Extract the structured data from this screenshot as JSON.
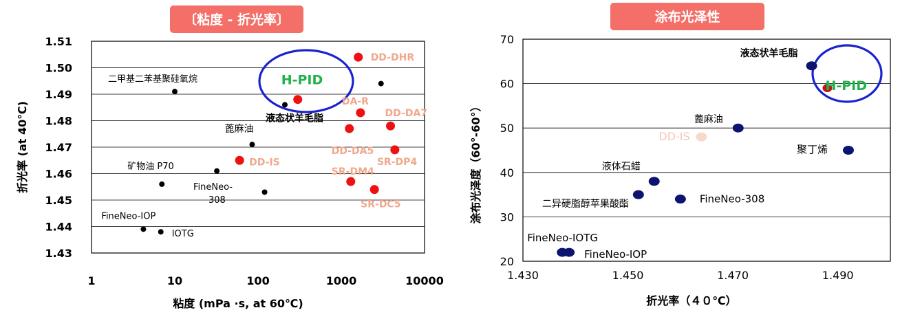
{
  "chart_data": [
    {
      "type": "scatter",
      "title": "〔粘度 - 折光率〕",
      "xlabel": "粘度 (mPa ·s, at 60℃)",
      "ylabel": "折光率 (at 40℃)",
      "xscale": "log",
      "xlim": [
        1,
        10000
      ],
      "ylim": [
        1.43,
        1.51
      ],
      "xticks": [
        1,
        10,
        100,
        1000,
        10000
      ],
      "xtick_labels": [
        "1",
        "10",
        "100",
        "1000",
        "10000"
      ],
      "yticks": [
        1.43,
        1.44,
        1.45,
        1.46,
        1.47,
        1.48,
        1.49,
        1.5,
        1.51
      ],
      "ytick_labels": [
        "1.43",
        "1.44",
        "1.45",
        "1.46",
        "1.47",
        "1.48",
        "1.49",
        "1.50",
        "1.51"
      ],
      "grid": "horizontal",
      "highlight": {
        "label": "H-PID",
        "color": "#21b24b",
        "ring_color": "#1a22d0"
      },
      "points": [
        {
          "label": "二甲基二苯基聚硅氧烷",
          "x": 10,
          "y": 1.491,
          "color": "#000000",
          "label_color": "#000000"
        },
        {
          "label": "",
          "x": 3000,
          "y": 1.494,
          "color": "#000000",
          "label_color": "#000000"
        },
        {
          "label": "液态状羊毛脂",
          "x": 210,
          "y": 1.486,
          "color": "#000000",
          "label_color": "#000000"
        },
        {
          "label": "蓖麻油",
          "x": 85,
          "y": 1.471,
          "color": "#000000",
          "label_color": "#000000"
        },
        {
          "label": "矿物油 P70",
          "x": 7,
          "y": 1.456,
          "color": "#000000",
          "label_color": "#000000"
        },
        {
          "label": "",
          "x": 32,
          "y": 1.461,
          "color": "#000000",
          "label_color": "#000000"
        },
        {
          "label": "FineNeo-308",
          "x": 120,
          "y": 1.453,
          "color": "#000000",
          "label_color": "#000000"
        },
        {
          "label": "FineNeo-IOP",
          "x": 4.2,
          "y": 1.439,
          "color": "#000000",
          "label_color": "#000000"
        },
        {
          "label": "IOTG",
          "x": 6.8,
          "y": 1.438,
          "color": "#000000",
          "label_color": "#000000"
        },
        {
          "label": "DD-DHR",
          "x": 1600,
          "y": 1.504,
          "color": "#ee1111",
          "label_color": "#f0a88c"
        },
        {
          "label": "H-PID",
          "x": 300,
          "y": 1.488,
          "color": "#ee1111",
          "label_color": "#21b24b"
        },
        {
          "label": "DA-R",
          "x": 1700,
          "y": 1.483,
          "color": "#ee1111",
          "label_color": "#f0a88c"
        },
        {
          "label": "DD-DA7",
          "x": 3900,
          "y": 1.478,
          "color": "#ee1111",
          "label_color": "#f0a88c"
        },
        {
          "label": "DD-DA5",
          "x": 1250,
          "y": 1.477,
          "color": "#ee1111",
          "label_color": "#f0a88c"
        },
        {
          "label": "SR-DP4",
          "x": 4400,
          "y": 1.469,
          "color": "#ee1111",
          "label_color": "#f0a88c"
        },
        {
          "label": "DD-IS",
          "x": 60,
          "y": 1.465,
          "color": "#ee1111",
          "label_color": "#f0a88c"
        },
        {
          "label": "SR-DM4",
          "x": 1300,
          "y": 1.457,
          "color": "#ee1111",
          "label_color": "#f0a88c"
        },
        {
          "label": "SR-DC5",
          "x": 2500,
          "y": 1.454,
          "color": "#ee1111",
          "label_color": "#f0a88c"
        }
      ]
    },
    {
      "type": "scatter",
      "title": "涂布光泽性",
      "xlabel": "折光率（４０℃）",
      "ylabel": "涂布光泽度（60°-60°）",
      "xlim": [
        1.43,
        1.5
      ],
      "ylim": [
        20,
        70
      ],
      "xticks": [
        1.43,
        1.45,
        1.47,
        1.49
      ],
      "xtick_labels": [
        "1.430",
        "1.450",
        "1.470",
        "1.490"
      ],
      "yticks": [
        20,
        30,
        40,
        50,
        60,
        70
      ],
      "ytick_labels": [
        "20",
        "30",
        "40",
        "50",
        "60",
        "70"
      ],
      "grid": "horizontal",
      "highlight": {
        "label": "H-PID",
        "color": "#21b24b",
        "ring_color": "#1a22d0"
      },
      "points": [
        {
          "label": "液态状羊毛脂",
          "x": 1.485,
          "y": 64,
          "color": "#0d1470",
          "label_color": "#000000"
        },
        {
          "label": "H-PID",
          "x": 1.488,
          "y": 59,
          "color": "#c01616",
          "label_color": "#21b24b"
        },
        {
          "label": "蓖麻油",
          "x": 1.471,
          "y": 50,
          "color": "#0d1470",
          "label_color": "#000000"
        },
        {
          "label": "DD-IS",
          "x": 1.464,
          "y": 48,
          "color": "#f6d8cc",
          "label_color": "#f4c6b4"
        },
        {
          "label": "聚丁烯",
          "x": 1.492,
          "y": 45,
          "color": "#0d1470",
          "label_color": "#000000"
        },
        {
          "label": "液体石蜡",
          "x": 1.455,
          "y": 38,
          "color": "#0d1470",
          "label_color": "#000000"
        },
        {
          "label": "二异硬脂醇苹果酸酯",
          "x": 1.452,
          "y": 35,
          "color": "#0d1470",
          "label_color": "#000000"
        },
        {
          "label": "FineNeo-308",
          "x": 1.46,
          "y": 34,
          "color": "#0d1470",
          "label_color": "#000000"
        },
        {
          "label": "FineNeo-IOTG",
          "x": 1.4375,
          "y": 22,
          "color": "#0d1470",
          "label_color": "#000000"
        },
        {
          "label": "FineNeo-IOP",
          "x": 1.4388,
          "y": 22,
          "color": "#0d1470",
          "label_color": "#000000"
        }
      ]
    }
  ]
}
